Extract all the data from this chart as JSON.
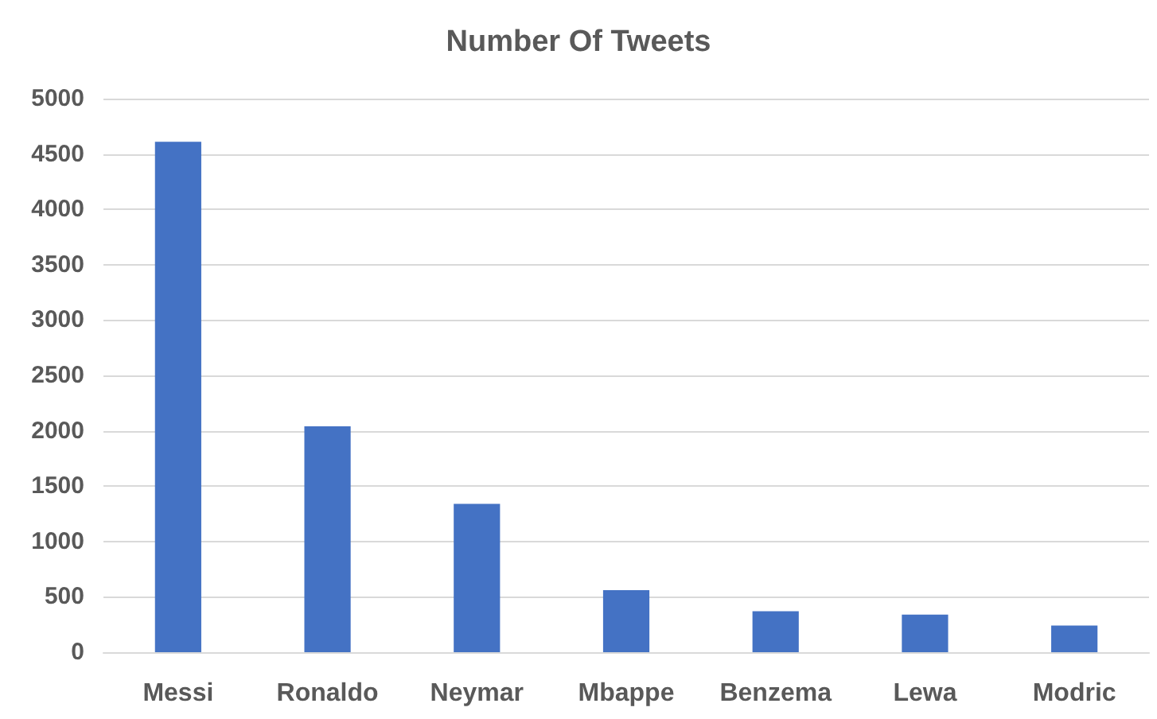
{
  "chart_data": {
    "type": "bar",
    "title": "Number Of Tweets",
    "categories": [
      "Messi",
      "Ronaldo",
      "Neymar",
      "Mbappe",
      "Benzema",
      "Lewa",
      "Modric"
    ],
    "values": [
      4610,
      2040,
      1340,
      560,
      370,
      340,
      240
    ],
    "color": "#4472c4",
    "ylim": [
      0,
      5000
    ],
    "yticks": [
      0,
      500,
      1000,
      1500,
      2000,
      2500,
      3000,
      3500,
      4000,
      4500,
      5000
    ],
    "grid": "y"
  }
}
